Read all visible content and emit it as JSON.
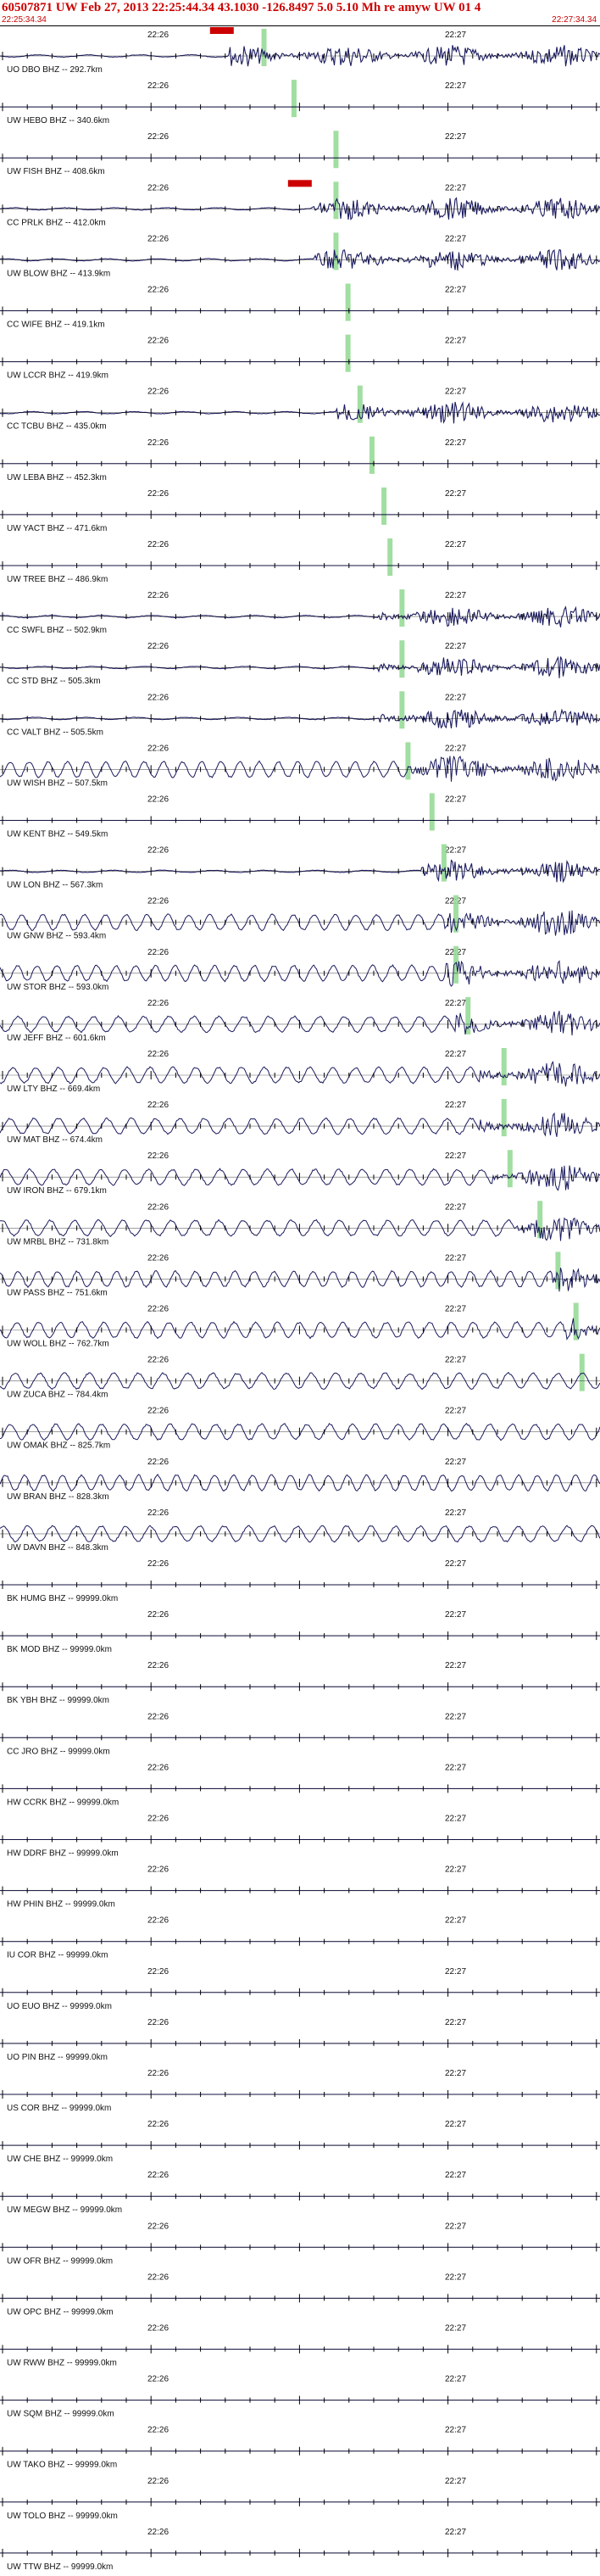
{
  "header": {
    "title": "60507871 UW Feb 27, 2013 22:25:44.34   43.1030 -126.8497  5.0 5.10 Mh re amyw UW 01   4",
    "start_time": "22:25:34.34",
    "end_time": "22:27:34.34"
  },
  "tick_labels": {
    "first": "22:26",
    "second": "22:27"
  },
  "colors": {
    "trace": "#1a1a5e",
    "pick": "#90d890",
    "marker": "#cc0000",
    "axis": "#000000"
  },
  "stations": [
    {
      "label": "UO DBO BHZ -- 292.7km",
      "onset": 0.38,
      "pick": 0.44,
      "marker": 0.35,
      "style": "quake"
    },
    {
      "label": "UW HEBO BHZ -- 340.6km",
      "onset": null,
      "pick": 0.49,
      "style": "flat"
    },
    {
      "label": "UW FISH BHZ -- 408.6km",
      "onset": 0.55,
      "pick": 0.56,
      "style": "flat"
    },
    {
      "label": "CC PRLK BHZ -- 412.0km",
      "onset": 0.52,
      "pick": 0.56,
      "marker": 0.48,
      "style": "quake"
    },
    {
      "label": "UW BLOW BHZ -- 413.9km",
      "onset": 0.52,
      "pick": 0.56,
      "style": "quake"
    },
    {
      "label": "CC WIFE BHZ -- 419.1km",
      "onset": null,
      "pick": 0.58,
      "style": "flat"
    },
    {
      "label": "UW LCCR BHZ -- 419.9km",
      "onset": null,
      "pick": 0.58,
      "style": "flat"
    },
    {
      "label": "CC TCBU BHZ -- 435.0km",
      "onset": 0.56,
      "pick": 0.6,
      "style": "quake"
    },
    {
      "label": "UW LEBA BHZ -- 452.3km",
      "onset": null,
      "pick": 0.62,
      "style": "flat"
    },
    {
      "label": "UW YACT BHZ -- 471.6km",
      "onset": null,
      "pick": 0.64,
      "style": "flat"
    },
    {
      "label": "UW TREE BHZ -- 486.9km",
      "onset": null,
      "pick": 0.65,
      "style": "flat"
    },
    {
      "label": "CC SWFL BHZ -- 502.9km",
      "onset": 0.63,
      "pick": 0.67,
      "style": "quake"
    },
    {
      "label": "CC STD BHZ -- 505.3km",
      "onset": 0.63,
      "pick": 0.67,
      "style": "quake"
    },
    {
      "label": "CC VALT BHZ -- 505.5km",
      "onset": 0.63,
      "pick": 0.67,
      "style": "quake"
    },
    {
      "label": "UW WISH BHZ -- 507.5km",
      "onset": 0.68,
      "pick": 0.68,
      "style": "wave"
    },
    {
      "label": "UW KENT BHZ -- 549.5km",
      "onset": null,
      "pick": 0.72,
      "style": "flat"
    },
    {
      "label": "UW LON BHZ -- 567.3km",
      "onset": 0.7,
      "pick": 0.74,
      "style": "quake"
    },
    {
      "label": "UW GNW BHZ -- 593.4km",
      "onset": 0.74,
      "pick": 0.76,
      "style": "wave"
    },
    {
      "label": "UW STOR BHZ -- 593.0km",
      "onset": 0.74,
      "pick": 0.76,
      "style": "wave"
    },
    {
      "label": "UW JEFF BHZ -- 601.6km",
      "onset": 0.76,
      "pick": 0.78,
      "style": "wave"
    },
    {
      "label": "UW LTY BHZ -- 669.4km",
      "onset": 0.8,
      "pick": 0.84,
      "style": "wave"
    },
    {
      "label": "UW MAT BHZ -- 674.4km",
      "onset": 0.8,
      "pick": 0.84,
      "style": "wave"
    },
    {
      "label": "UW IRON BHZ -- 679.1km",
      "onset": 0.82,
      "pick": 0.85,
      "style": "wave"
    },
    {
      "label": "UW MRBL BHZ -- 731.8km",
      "onset": 0.86,
      "pick": 0.9,
      "style": "wave"
    },
    {
      "label": "UW PASS BHZ -- 751.6km",
      "onset": 0.92,
      "pick": 0.93,
      "style": "wave"
    },
    {
      "label": "UW WOLL BHZ -- 762.7km",
      "onset": 0.94,
      "pick": 0.96,
      "style": "wave"
    },
    {
      "label": "UW ZUCA BHZ -- 784.4km",
      "onset": null,
      "pick": 0.97,
      "style": "wave"
    },
    {
      "label": "UW OMAK BHZ -- 825.7km",
      "onset": null,
      "pick": null,
      "style": "wave"
    },
    {
      "label": "UW BRAN BHZ -- 828.3km",
      "onset": null,
      "pick": null,
      "style": "wave"
    },
    {
      "label": "UW DAVN BHZ -- 848.3km",
      "onset": null,
      "pick": null,
      "style": "wave"
    },
    {
      "label": "BK HUMG BHZ -- 99999.0km",
      "onset": null,
      "pick": null,
      "style": "empty"
    },
    {
      "label": "BK MOD BHZ -- 99999.0km",
      "onset": null,
      "pick": null,
      "style": "empty"
    },
    {
      "label": "BK YBH BHZ -- 99999.0km",
      "onset": null,
      "pick": null,
      "style": "empty"
    },
    {
      "label": "CC JRO BHZ -- 99999.0km",
      "onset": null,
      "pick": null,
      "style": "empty"
    },
    {
      "label": "HW CCRK BHZ -- 99999.0km",
      "onset": null,
      "pick": null,
      "style": "empty"
    },
    {
      "label": "HW DDRF BHZ -- 99999.0km",
      "onset": null,
      "pick": null,
      "style": "empty"
    },
    {
      "label": "HW PHIN BHZ -- 99999.0km",
      "onset": null,
      "pick": null,
      "style": "empty"
    },
    {
      "label": "IU COR BHZ -- 99999.0km",
      "onset": null,
      "pick": null,
      "style": "empty"
    },
    {
      "label": "UO EUO BHZ -- 99999.0km",
      "onset": null,
      "pick": null,
      "style": "empty"
    },
    {
      "label": "UO PIN BHZ -- 99999.0km",
      "onset": null,
      "pick": null,
      "style": "empty"
    },
    {
      "label": "US COR BHZ -- 99999.0km",
      "onset": null,
      "pick": null,
      "style": "empty"
    },
    {
      "label": "UW CHE BHZ -- 99999.0km",
      "onset": null,
      "pick": null,
      "style": "empty"
    },
    {
      "label": "UW MEGW BHZ -- 99999.0km",
      "onset": null,
      "pick": null,
      "style": "empty"
    },
    {
      "label": "UW OFR BHZ -- 99999.0km",
      "onset": null,
      "pick": null,
      "style": "empty"
    },
    {
      "label": "UW OPC BHZ -- 99999.0km",
      "onset": null,
      "pick": null,
      "style": "empty"
    },
    {
      "label": "UW RWW BHZ -- 99999.0km",
      "onset": null,
      "pick": null,
      "style": "empty"
    },
    {
      "label": "UW SQM BHZ -- 99999.0km",
      "onset": null,
      "pick": null,
      "style": "empty"
    },
    {
      "label": "UW TAKO BHZ -- 99999.0km",
      "onset": null,
      "pick": null,
      "style": "empty"
    },
    {
      "label": "UW TOLO BHZ -- 99999.0km",
      "onset": null,
      "pick": null,
      "style": "empty"
    },
    {
      "label": "UW TTW BHZ -- 99999.0km",
      "onset": null,
      "pick": null,
      "style": "empty"
    }
  ]
}
